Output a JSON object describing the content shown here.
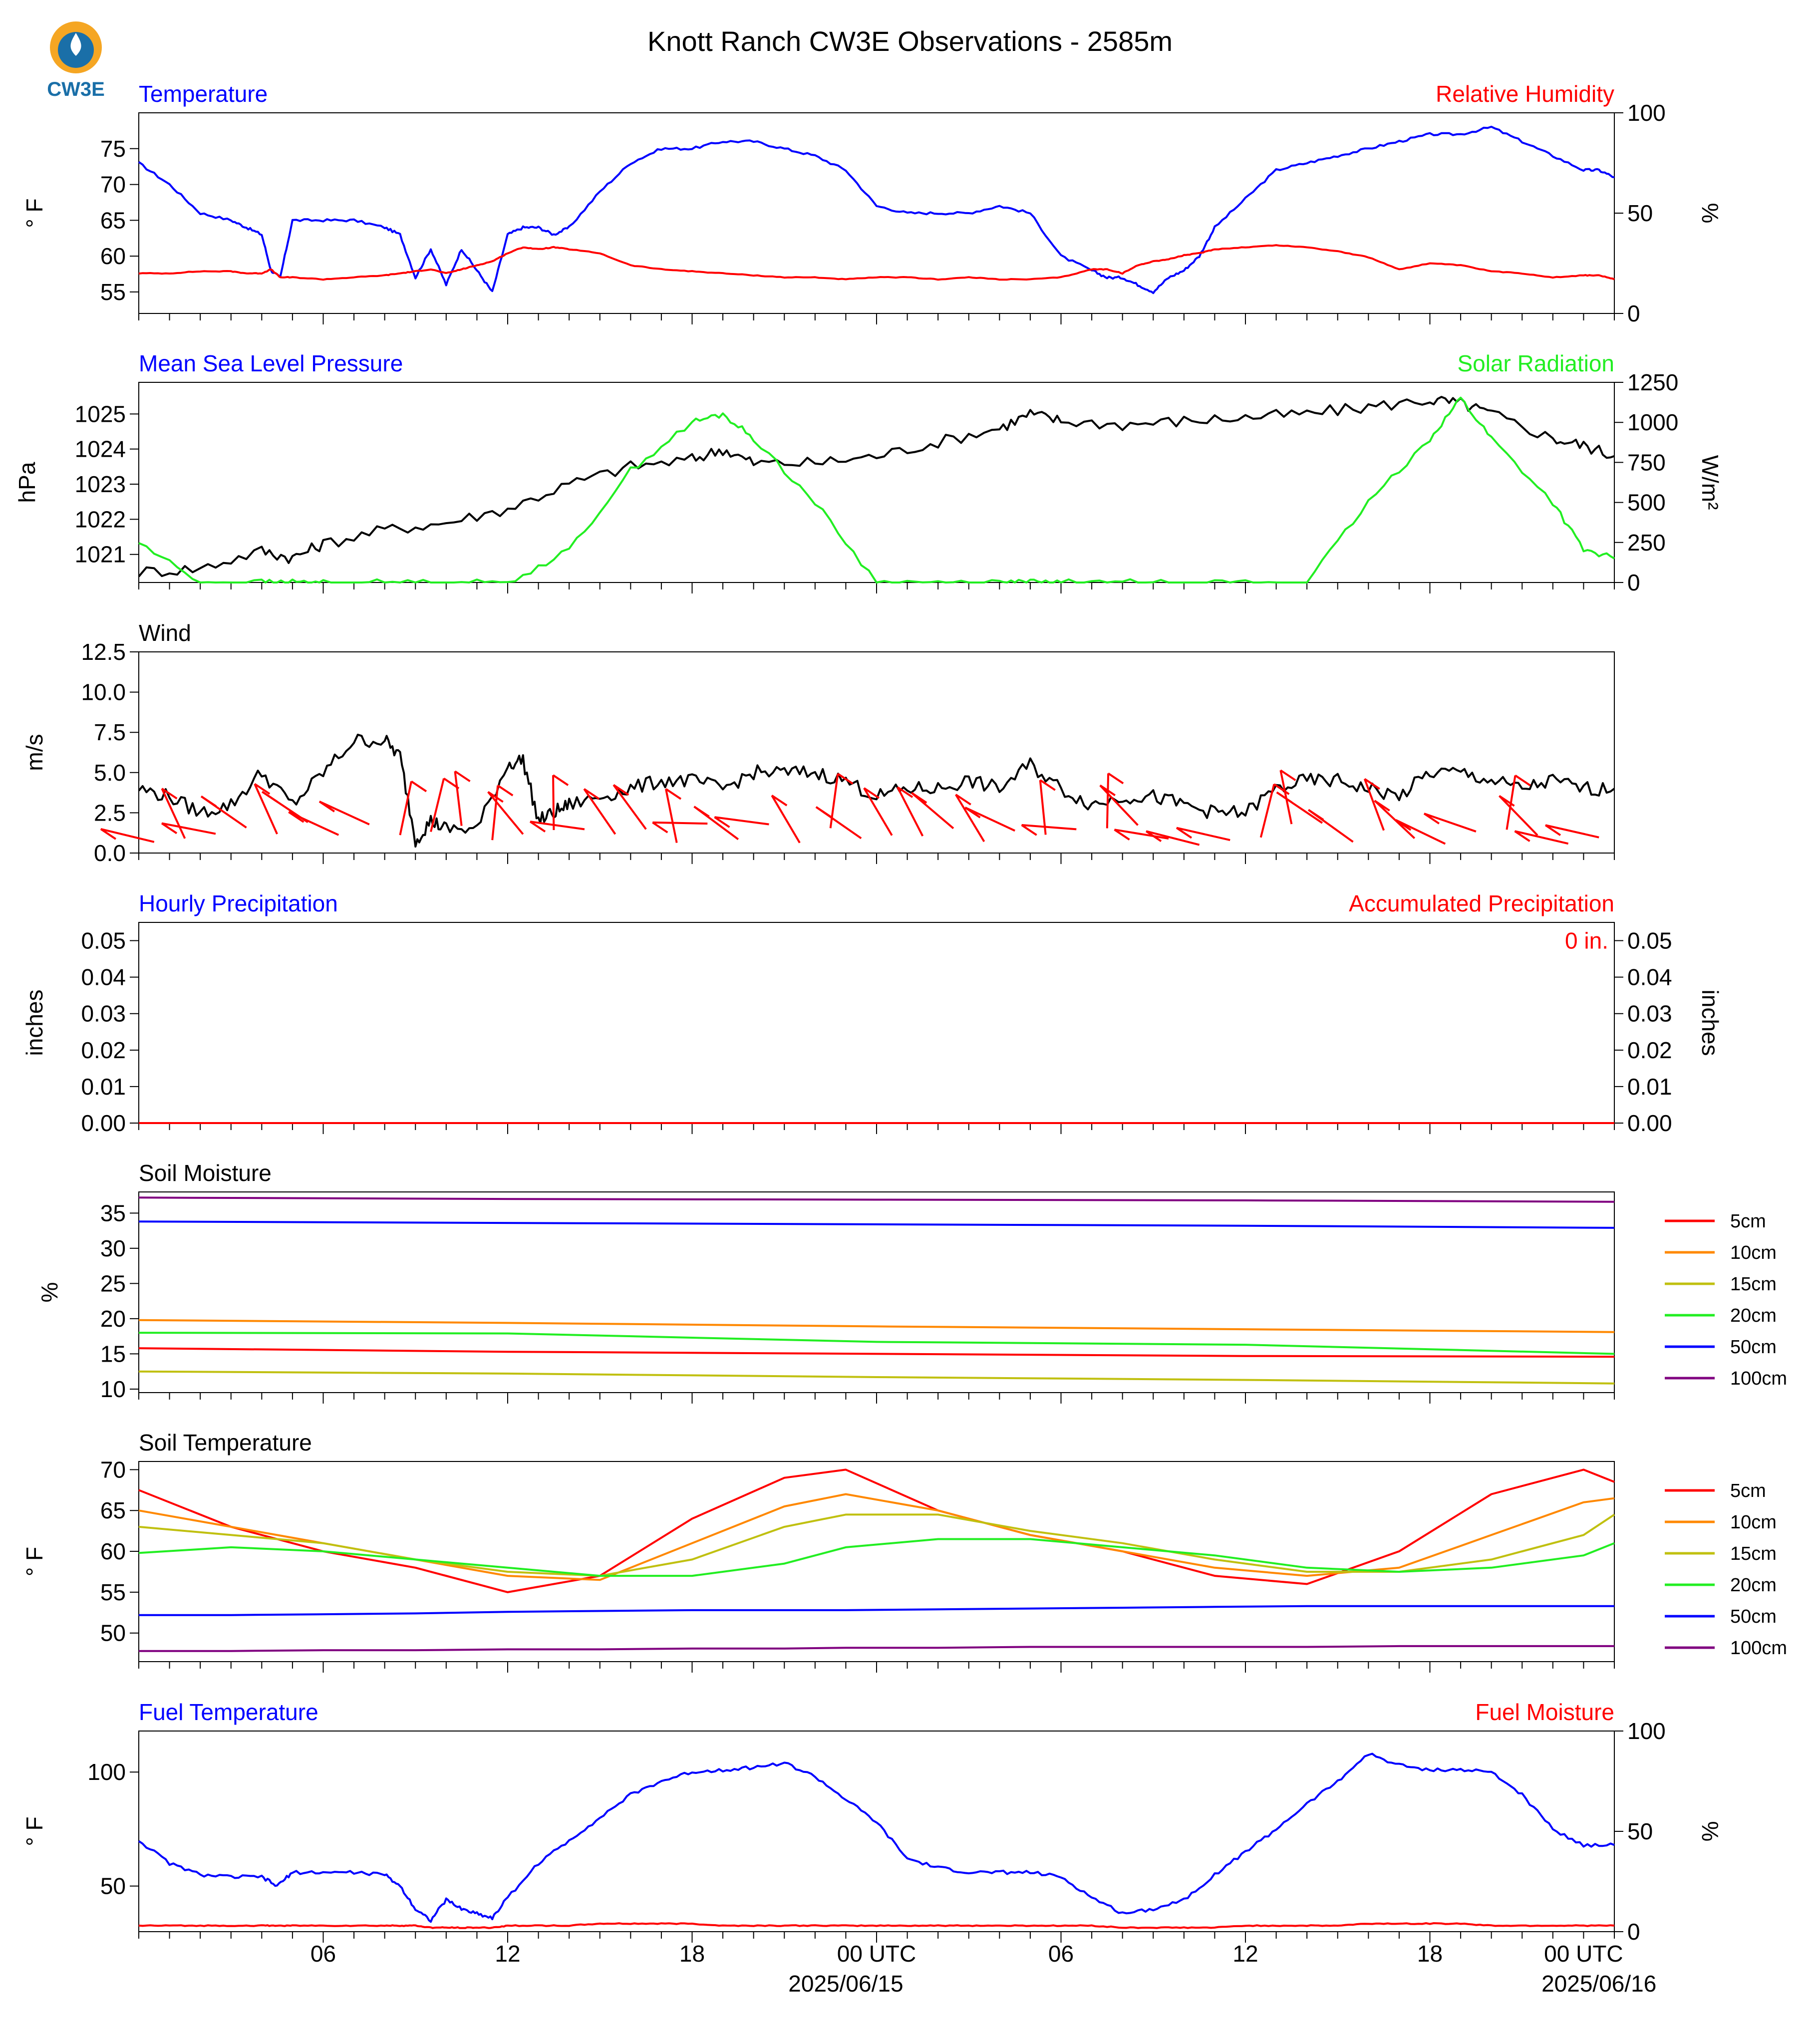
{
  "figure_title": "Knott Ranch CW3E Observations - 2585m",
  "logo_text": "CW3E",
  "colors": {
    "blue": "#0000ff",
    "red": "#ff0000",
    "green": "#22ee22",
    "black": "#000000",
    "orange": "#ff8800",
    "olive": "#c0c010",
    "purple": "#800080"
  },
  "x_axis": {
    "tick_labels": [
      "06",
      "12",
      "18",
      "00 UTC",
      "06",
      "12",
      "18",
      "00 UTC"
    ],
    "date_labels": [
      "2025/06/15",
      "2025/06/16"
    ]
  },
  "chart_data": [
    {
      "id": "temperature",
      "type": "line",
      "title_left": "Temperature",
      "title_right": "Relative Humidity",
      "ylabel": "° F",
      "ylabel_right": "%",
      "ylim": [
        52,
        80
      ],
      "yticks": [
        55,
        60,
        65,
        70,
        75
      ],
      "ylim_right": [
        0,
        100
      ],
      "yticks_right": [
        0,
        50,
        100
      ],
      "x": [
        0,
        1,
        2,
        3,
        3.5,
        4,
        4.3,
        4.6,
        5,
        6,
        7,
        8,
        8.5,
        9,
        9.5,
        10,
        10.5,
        11,
        11.5,
        12,
        12.5,
        13,
        13.5,
        14,
        15,
        16,
        17,
        18,
        19,
        20,
        21,
        22,
        23,
        24,
        25,
        26,
        27,
        28,
        29,
        30,
        31,
        31.5,
        32,
        32.5,
        33,
        33.5,
        34,
        34.5,
        35,
        36,
        37,
        38,
        39,
        40,
        41,
        42,
        43,
        44,
        45,
        46,
        47,
        47.5,
        48
      ],
      "series": [
        {
          "name": "Temperature",
          "axis": "left",
          "color": "blue",
          "values": [
            73,
            70,
            66,
            65,
            64,
            63,
            58,
            57,
            65,
            65,
            65,
            64,
            63,
            57,
            61,
            56,
            61,
            58,
            55,
            63,
            64,
            64,
            63,
            64,
            69,
            73,
            75,
            75,
            76,
            76,
            75,
            74,
            72,
            67,
            66,
            66,
            66,
            67,
            66,
            60,
            58,
            57,
            57,
            56,
            55,
            57,
            58,
            60,
            64,
            68,
            72,
            73,
            74,
            75,
            76,
            77,
            77,
            78,
            76,
            74,
            72,
            72,
            71
          ]
        },
        {
          "name": "Relative Humidity",
          "axis": "right",
          "color": "red",
          "values": [
            20,
            20,
            21,
            21,
            20,
            20,
            22,
            18,
            18,
            17,
            18,
            19,
            20,
            21,
            22,
            20,
            22,
            24,
            26,
            30,
            33,
            32,
            33,
            32,
            30,
            24,
            22,
            21,
            20,
            19,
            18,
            18,
            17,
            18,
            18,
            17,
            18,
            17,
            17,
            18,
            22,
            22,
            20,
            24,
            26,
            27,
            29,
            30,
            32,
            33,
            34,
            33,
            31,
            28,
            22,
            25,
            24,
            21,
            20,
            18,
            19,
            19,
            17
          ]
        }
      ]
    },
    {
      "id": "pressure",
      "type": "line",
      "title_left": "Mean Sea Level Pressure",
      "title_right": "Solar Radiation",
      "ylabel": "hPa",
      "ylabel_right": "W/m²",
      "ylim": [
        1020.2,
        1025.9
      ],
      "yticks": [
        1021,
        1022,
        1023,
        1024,
        1025
      ],
      "ylim_right": [
        0,
        1250
      ],
      "yticks_right": [
        0,
        250,
        500,
        750,
        1000,
        1250
      ],
      "x": [
        0,
        2,
        4,
        5,
        6,
        8,
        10,
        12,
        14,
        16,
        18,
        19,
        20,
        22,
        24,
        26,
        28,
        29,
        30,
        32,
        34,
        36,
        38,
        40,
        42,
        43,
        44,
        46,
        47,
        48
      ],
      "series": [
        {
          "name": "Mean Sea Level Pressure",
          "axis": "left",
          "color": "black",
          "values": [
            1020.5,
            1020.6,
            1021.1,
            1020.9,
            1021.3,
            1021.7,
            1021.9,
            1022.3,
            1023.0,
            1023.5,
            1023.7,
            1024.0,
            1023.6,
            1023.6,
            1023.8,
            1024.2,
            1024.6,
            1025.0,
            1024.8,
            1024.7,
            1024.8,
            1024.9,
            1025.0,
            1025.2,
            1025.4,
            1025.3,
            1025.0,
            1024.3,
            1024.1,
            1023.8
          ]
        },
        {
          "name": "Solar Radiation",
          "axis": "right",
          "color": "green",
          "values": [
            250,
            0,
            0,
            0,
            0,
            0,
            0,
            0,
            200,
            700,
            1000,
            1050,
            900,
            500,
            0,
            0,
            0,
            0,
            0,
            0,
            0,
            0,
            0,
            500,
            900,
            1150,
            900,
            500,
            200,
            150
          ]
        }
      ]
    },
    {
      "id": "wind",
      "type": "line",
      "title_left": "Wind",
      "ylabel": "m/s",
      "ylim": [
        0,
        12.5
      ],
      "yticks": [
        0.0,
        2.5,
        5.0,
        7.5,
        10.0,
        12.5
      ],
      "x": [
        0,
        1,
        2,
        3,
        4,
        5,
        6,
        7,
        8,
        8.5,
        9,
        9.5,
        10,
        11,
        12,
        12.5,
        13,
        13.5,
        14,
        15,
        16,
        17,
        18,
        19,
        20,
        21,
        22,
        23,
        24,
        25,
        26,
        27,
        28,
        29,
        30,
        31,
        32,
        33,
        34,
        35,
        36,
        37,
        38,
        39,
        40,
        41,
        42,
        43,
        44,
        45,
        46,
        47,
        48
      ],
      "series": [
        {
          "name": "Wind Speed",
          "axis": "left",
          "color": "black",
          "values": [
            4.0,
            3.5,
            2.5,
            3.0,
            5.0,
            3.0,
            5.0,
            7.0,
            7.0,
            6.0,
            0.8,
            2.0,
            1.5,
            1.5,
            5.5,
            5.8,
            2.0,
            2.5,
            3.0,
            3.5,
            4.0,
            4.5,
            4.5,
            4.0,
            5.0,
            5.0,
            5.0,
            4.5,
            3.5,
            4.0,
            4.0,
            4.5,
            4.0,
            5.5,
            4.0,
            3.0,
            3.5,
            3.5,
            3.0,
            2.5,
            2.5,
            4.0,
            4.5,
            4.5,
            4.0,
            3.5,
            5.0,
            5.0,
            4.5,
            4.0,
            4.5,
            4.0,
            4.0
          ]
        }
      ],
      "barb_color": "red"
    },
    {
      "id": "precip",
      "type": "line",
      "title_left": "Hourly Precipitation",
      "title_right": "Accumulated Precipitation",
      "ylabel": "inches",
      "ylabel_right": "inches",
      "ylim": [
        0,
        0.055
      ],
      "yticks": [
        0.0,
        0.01,
        0.02,
        0.03,
        0.04,
        0.05
      ],
      "ylim_right": [
        0,
        0.055
      ],
      "yticks_right": [
        0.0,
        0.01,
        0.02,
        0.03,
        0.04,
        0.05
      ],
      "annotation": "0 in.",
      "x": [
        0,
        48
      ],
      "series": [
        {
          "name": "Hourly Precipitation",
          "axis": "left",
          "color": "blue",
          "values": [
            0,
            0
          ]
        },
        {
          "name": "Accumulated Precipitation",
          "axis": "right",
          "color": "red",
          "values": [
            0,
            0
          ]
        }
      ]
    },
    {
      "id": "soil_moisture",
      "type": "line",
      "title_left": "Soil Moisture",
      "ylabel": "%",
      "ylim": [
        9.5,
        38
      ],
      "yticks": [
        10,
        15,
        20,
        25,
        30,
        35
      ],
      "x": [
        0,
        12,
        24,
        36,
        48
      ],
      "legend": [
        "5cm",
        "10cm",
        "15cm",
        "20cm",
        "50cm",
        "100cm"
      ],
      "series": [
        {
          "name": "5cm",
          "axis": "left",
          "color": "red",
          "values": [
            15.8,
            15.3,
            15.0,
            14.7,
            14.6
          ]
        },
        {
          "name": "10cm",
          "axis": "left",
          "color": "orange",
          "values": [
            19.8,
            19.4,
            18.9,
            18.5,
            18.1
          ]
        },
        {
          "name": "15cm",
          "axis": "left",
          "color": "olive",
          "values": [
            12.5,
            12.2,
            11.7,
            11.3,
            10.8
          ]
        },
        {
          "name": "20cm",
          "axis": "left",
          "color": "green",
          "values": [
            18.0,
            17.9,
            16.7,
            16.3,
            15.0
          ]
        },
        {
          "name": "50cm",
          "axis": "left",
          "color": "blue",
          "values": [
            33.8,
            33.6,
            33.4,
            33.2,
            32.9
          ]
        },
        {
          "name": "100cm",
          "axis": "left",
          "color": "purple",
          "values": [
            37.2,
            37.0,
            36.9,
            36.8,
            36.6
          ]
        }
      ]
    },
    {
      "id": "soil_temperature",
      "type": "line",
      "title_left": "Soil Temperature",
      "ylabel": "° F",
      "ylim": [
        46.5,
        71
      ],
      "yticks": [
        50,
        55,
        60,
        65,
        70
      ],
      "x": [
        0,
        3,
        6,
        9,
        12,
        15,
        18,
        21,
        23,
        26,
        29,
        32,
        35,
        38,
        41,
        44,
        47,
        48
      ],
      "legend": [
        "5cm",
        "10cm",
        "15cm",
        "20cm",
        "50cm",
        "100cm"
      ],
      "series": [
        {
          "name": "5cm",
          "axis": "left",
          "color": "red",
          "values": [
            67.5,
            63,
            60,
            58,
            55,
            57,
            64,
            69,
            70,
            65,
            62,
            60,
            57,
            56,
            60,
            67,
            70,
            68.5
          ]
        },
        {
          "name": "10cm",
          "axis": "left",
          "color": "orange",
          "values": [
            65,
            63,
            61,
            59,
            57,
            56.5,
            61,
            65.5,
            67,
            65,
            62,
            60,
            58,
            57,
            58,
            62,
            66,
            66.5
          ]
        },
        {
          "name": "15cm",
          "axis": "left",
          "color": "olive",
          "values": [
            63,
            62,
            61,
            59,
            57.5,
            57,
            59,
            63,
            64.5,
            64.5,
            62.5,
            61,
            59,
            57.5,
            57.5,
            59,
            62,
            64.5
          ]
        },
        {
          "name": "20cm",
          "axis": "left",
          "color": "green",
          "values": [
            59.8,
            60.5,
            60,
            59,
            58,
            57,
            57,
            58.5,
            60.5,
            61.5,
            61.5,
            60.5,
            59.5,
            58,
            57.5,
            58,
            59.5,
            61
          ]
        },
        {
          "name": "50cm",
          "axis": "left",
          "color": "blue",
          "values": [
            52.2,
            52.2,
            52.3,
            52.4,
            52.6,
            52.7,
            52.8,
            52.8,
            52.8,
            52.9,
            53.0,
            53.1,
            53.2,
            53.3,
            53.3,
            53.3,
            53.3,
            53.3
          ]
        },
        {
          "name": "100cm",
          "axis": "left",
          "color": "purple",
          "values": [
            47.8,
            47.8,
            47.9,
            47.9,
            48.0,
            48.0,
            48.1,
            48.1,
            48.2,
            48.2,
            48.3,
            48.3,
            48.3,
            48.3,
            48.4,
            48.4,
            48.4,
            48.4
          ]
        }
      ]
    },
    {
      "id": "fuel",
      "type": "line",
      "title_left": "Fuel Temperature",
      "title_right": "Fuel Moisture",
      "ylabel": "° F",
      "ylabel_right": "%",
      "ylim": [
        30,
        118
      ],
      "yticks": [
        50,
        100
      ],
      "ylim_right": [
        0,
        100
      ],
      "yticks_right": [
        0,
        50,
        100
      ],
      "x": [
        0,
        1,
        2,
        3,
        4,
        4.5,
        5,
        6,
        7,
        8,
        8.5,
        9,
        9.5,
        10,
        10.5,
        11,
        11.5,
        12,
        13,
        14,
        15,
        16,
        17,
        18,
        19,
        20,
        21,
        22,
        23,
        24,
        25,
        26,
        27,
        28,
        29,
        30,
        31,
        32,
        33,
        34,
        35,
        36,
        37,
        38,
        39,
        40,
        41,
        42,
        43,
        44,
        45,
        46,
        47,
        48
      ],
      "series": [
        {
          "name": "Fuel Temperature",
          "axis": "left",
          "color": "blue",
          "values": [
            70,
            60,
            55,
            54,
            54,
            50,
            56,
            56,
            56,
            55,
            50,
            40,
            35,
            44,
            40,
            38,
            36,
            45,
            60,
            70,
            80,
            90,
            96,
            100,
            101,
            102,
            104,
            98,
            88,
            78,
            62,
            58,
            56,
            56,
            56,
            54,
            45,
            38,
            40,
            44,
            55,
            65,
            75,
            86,
            96,
            108,
            103,
            101,
            101,
            100,
            90,
            75,
            68,
            68
          ]
        },
        {
          "name": "Fuel Moisture",
          "axis": "right",
          "color": "red",
          "values": [
            3,
            3,
            3,
            3,
            3,
            3,
            3,
            3,
            3,
            3,
            3,
            3,
            2,
            2,
            2,
            2,
            2,
            3,
            3,
            3,
            4,
            4,
            4,
            4,
            3,
            3,
            3,
            3,
            3,
            3,
            3,
            3,
            3,
            3,
            3,
            3,
            3,
            2,
            2,
            2,
            2,
            3,
            3,
            3,
            3,
            4,
            4,
            4,
            4,
            3,
            3,
            3,
            3,
            3
          ]
        }
      ]
    }
  ]
}
